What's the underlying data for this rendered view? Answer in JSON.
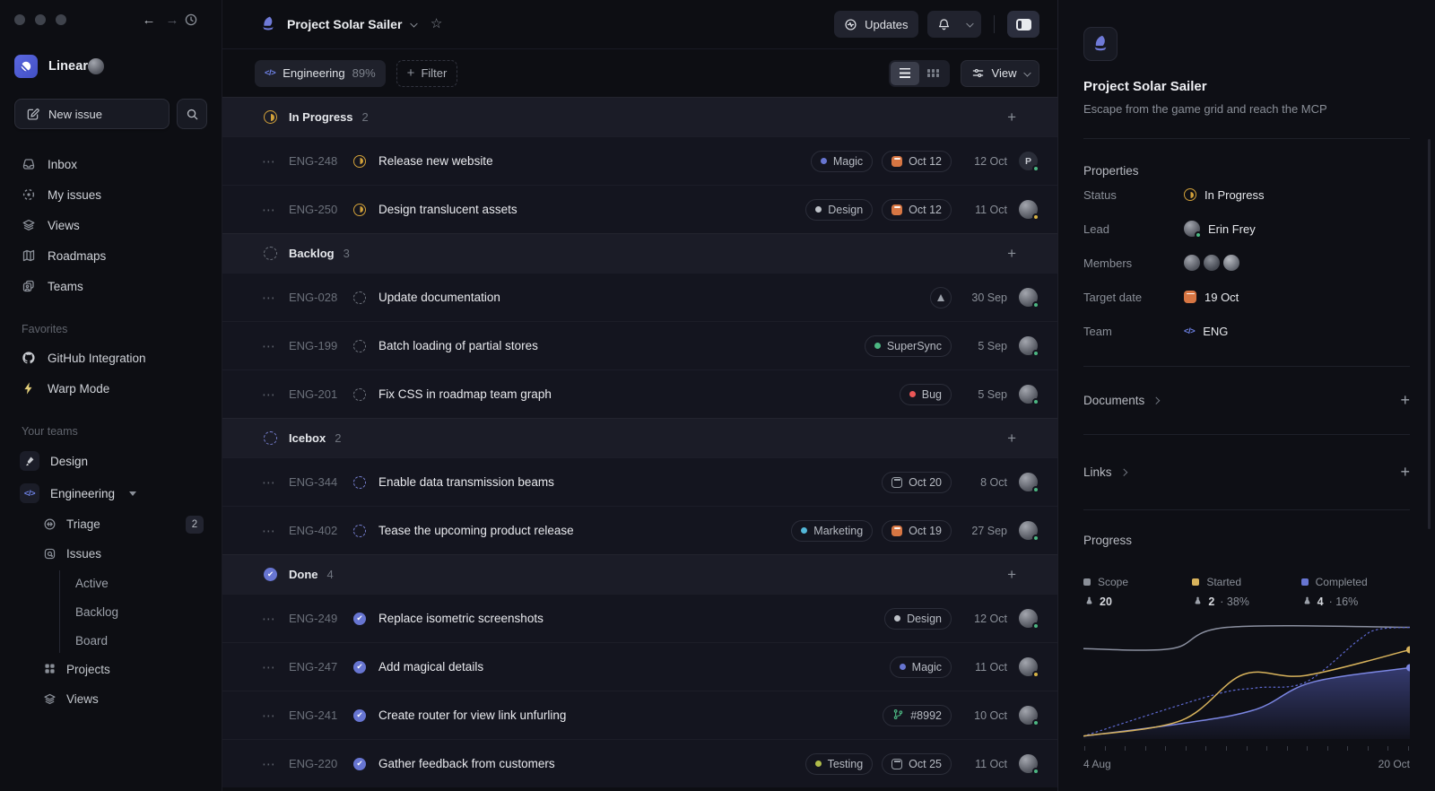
{
  "sidebar": {
    "workspace_name": "Linear",
    "new_issue_label": "New issue",
    "nav": [
      {
        "label": "Inbox"
      },
      {
        "label": "My issues"
      },
      {
        "label": "Views"
      },
      {
        "label": "Roadmaps"
      },
      {
        "label": "Teams"
      }
    ],
    "favorites_title": "Favorites",
    "favorites": [
      {
        "label": "GitHub Integration"
      },
      {
        "label": "Warp Mode"
      }
    ],
    "teams_title": "Your teams",
    "teams": [
      {
        "label": "Design"
      },
      {
        "label": "Engineering"
      }
    ],
    "engineering_children": [
      {
        "label": "Triage",
        "badge": "2"
      },
      {
        "label": "Issues"
      },
      {
        "label": "Active"
      },
      {
        "label": "Backlog"
      },
      {
        "label": "Board"
      },
      {
        "label": "Projects"
      },
      {
        "label": "Views"
      }
    ]
  },
  "topbar": {
    "project_title": "Project Solar Sailer",
    "updates_label": "Updates"
  },
  "filterbar": {
    "team_name": "Engineering",
    "team_percent": "89%",
    "filter_label": "Filter",
    "view_label": "View"
  },
  "groups": [
    {
      "name": "In Progress",
      "count": "2",
      "status": "in-progress",
      "issues": [
        {
          "id": "ENG-248",
          "title": "Release new website",
          "label": {
            "text": "Magic",
            "color": "#6775d1"
          },
          "due": {
            "text": "Oct 12",
            "style": "orange"
          },
          "date": "12 Oct",
          "avatar": {
            "type": "letter",
            "initial": "P",
            "dot": "green"
          }
        },
        {
          "id": "ENG-250",
          "title": "Design translucent assets",
          "label": {
            "text": "Design",
            "color": "#bec2c8"
          },
          "due": {
            "text": "Oct 12",
            "style": "orange"
          },
          "date": "11 Oct",
          "avatar": {
            "type": "photo",
            "dot": "yellow"
          }
        }
      ]
    },
    {
      "name": "Backlog",
      "count": "3",
      "status": "backlog",
      "issues": [
        {
          "id": "ENG-028",
          "title": "Update documentation",
          "attachment": true,
          "date": "30 Sep",
          "avatar": {
            "type": "photo",
            "dot": "green"
          }
        },
        {
          "id": "ENG-199",
          "title": "Batch loading of partial stores",
          "label": {
            "text": "SuperSync",
            "color": "#4cb782"
          },
          "date": "5 Sep",
          "avatar": {
            "type": "photo",
            "dot": "green"
          }
        },
        {
          "id": "ENG-201",
          "title": "Fix CSS in roadmap team graph",
          "label": {
            "text": "Bug",
            "color": "#eb5757"
          },
          "date": "5 Sep",
          "avatar": {
            "type": "photo",
            "dot": "green"
          }
        }
      ]
    },
    {
      "name": "Icebox",
      "count": "2",
      "status": "icebox",
      "issues": [
        {
          "id": "ENG-344",
          "title": "Enable data transmission beams",
          "due": {
            "text": "Oct 20",
            "style": "gray"
          },
          "date": "8 Oct",
          "avatar": {
            "type": "photo",
            "dot": "green"
          }
        },
        {
          "id": "ENG-402",
          "title": "Tease the upcoming product release",
          "label": {
            "text": "Marketing",
            "color": "#53b7d8"
          },
          "due": {
            "text": "Oct 19",
            "style": "orange"
          },
          "date": "27 Sep",
          "avatar": {
            "type": "photo",
            "dot": "green"
          }
        }
      ]
    },
    {
      "name": "Done",
      "count": "4",
      "status": "done",
      "issues": [
        {
          "id": "ENG-249",
          "title": "Replace isometric screenshots",
          "label": {
            "text": "Design",
            "color": "#bec2c8"
          },
          "date": "12 Oct",
          "avatar": {
            "type": "photo",
            "dot": "green"
          }
        },
        {
          "id": "ENG-247",
          "title": "Add magical details",
          "label": {
            "text": "Magic",
            "color": "#6775d1"
          },
          "date": "11 Oct",
          "avatar": {
            "type": "photo",
            "dot": "yellow"
          }
        },
        {
          "id": "ENG-241",
          "title": "Create router for view link unfurling",
          "pr": {
            "text": "#8992"
          },
          "date": "10 Oct",
          "avatar": {
            "type": "photo",
            "dot": "green"
          }
        },
        {
          "id": "ENG-220",
          "title": "Gather feedback from customers",
          "label": {
            "text": "Testing",
            "color": "#b0bc4a"
          },
          "due": {
            "text": "Oct 25",
            "style": "gray"
          },
          "date": "11 Oct",
          "avatar": {
            "type": "photo",
            "dot": "green"
          }
        }
      ]
    }
  ],
  "panel": {
    "title": "Project Solar Sailer",
    "description": "Escape from the game grid and reach the MCP",
    "properties_title": "Properties",
    "status_label": "Status",
    "status_value": "In Progress",
    "lead_label": "Lead",
    "lead_value": "Erin Frey",
    "members_label": "Members",
    "target_label": "Target date",
    "target_value": "19 Oct",
    "team_label": "Team",
    "team_value": "ENG",
    "documents_title": "Documents",
    "links_title": "Links",
    "progress_title": "Progress"
  },
  "chart_data": {
    "type": "line",
    "title": "Progress",
    "x_labels": [
      "4 Aug",
      "20 Oct"
    ],
    "x_range": [
      "4 Aug",
      "20 Oct"
    ],
    "grid": false,
    "legend_position": "top",
    "legend": [
      {
        "label": "Scope",
        "color": "#8a8f98",
        "count": "20",
        "pct": null
      },
      {
        "label": "Started",
        "color": "#d8b35c",
        "count": "2",
        "pct": "38%"
      },
      {
        "label": "Completed",
        "color": "#6775d1",
        "count": "4",
        "pct": "16%"
      }
    ],
    "y_unit": "percent of plot height (0 = bottom, 100 = top), estimated from pixels",
    "series": [
      {
        "name": "Scope",
        "color": "#8b90a0",
        "style": "solid",
        "area": false,
        "end_dot": false,
        "points": [
          [
            0,
            79
          ],
          [
            27,
            79
          ],
          [
            44,
            98
          ],
          [
            100,
            98
          ]
        ]
      },
      {
        "name": "Ideal trend",
        "color": "#5e6ad2",
        "style": "dashed",
        "area": false,
        "end_dot": false,
        "points": [
          [
            0,
            1
          ],
          [
            39,
            37
          ],
          [
            53,
            44
          ],
          [
            68,
            49
          ],
          [
            84,
            86
          ],
          [
            90,
            96
          ],
          [
            100,
            98
          ]
        ]
      },
      {
        "name": "Completed",
        "color": "#7b86e2",
        "style": "solid",
        "area": true,
        "end_dot": true,
        "points": [
          [
            0,
            1
          ],
          [
            32,
            13
          ],
          [
            53,
            25
          ],
          [
            70,
            49
          ],
          [
            100,
            62
          ]
        ]
      },
      {
        "name": "Started",
        "color": "#d8b35c",
        "style": "solid",
        "area": false,
        "end_dot": true,
        "points": [
          [
            0,
            1
          ],
          [
            30,
            15
          ],
          [
            49,
            56
          ],
          [
            68,
            55
          ],
          [
            100,
            78
          ]
        ]
      }
    ],
    "tick_count": 17
  }
}
